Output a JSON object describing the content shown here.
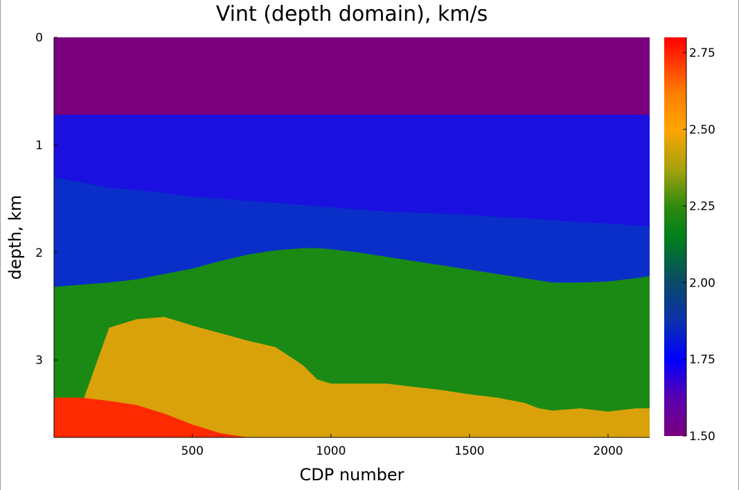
{
  "chart_data": {
    "type": "heatmap",
    "title": "Vint (depth domain), km/s",
    "xlabel": "CDP number",
    "ylabel": "depth, km",
    "xlim": [
      1,
      2150
    ],
    "ylim": [
      0,
      3.72
    ],
    "y_inverted": true,
    "x_ticks": [
      500,
      1000,
      1500,
      2000
    ],
    "x_tick_labels": [
      "500",
      "1000",
      "1500",
      "2000"
    ],
    "y_ticks": [
      0,
      1,
      2,
      3
    ],
    "y_tick_labels": [
      "0",
      "1",
      "2",
      "3"
    ],
    "colorbar": {
      "range": [
        1.5,
        2.8
      ],
      "ticks": [
        1.5,
        1.75,
        2.0,
        2.25,
        2.5,
        2.75
      ],
      "tick_labels": [
        "1.50",
        "1.75",
        "2.00",
        "2.25",
        "2.50",
        "2.75"
      ],
      "stops": [
        {
          "value": 1.5,
          "color": "#7a007e"
        },
        {
          "value": 1.625,
          "color": "#5a00b0"
        },
        {
          "value": 1.75,
          "color": "#0000ff"
        },
        {
          "value": 1.87,
          "color": "#0b2fb0"
        },
        {
          "value": 2.0,
          "color": "#0a4a6a"
        },
        {
          "value": 2.15,
          "color": "#00801a"
        },
        {
          "value": 2.25,
          "color": "#2f8a0e"
        },
        {
          "value": 2.37,
          "color": "#a5a20e"
        },
        {
          "value": 2.5,
          "color": "#ffa500"
        },
        {
          "value": 2.62,
          "color": "#ff7d00"
        },
        {
          "value": 2.8,
          "color": "#ff0000"
        }
      ]
    },
    "layer_boundaries": {
      "description_cdp": [
        1,
        100,
        200,
        300,
        400,
        500,
        600,
        700,
        800,
        900,
        950,
        1000,
        1100,
        1200,
        1300,
        1400,
        1500,
        1600,
        1700,
        1750,
        1800,
        1900,
        2000,
        2100,
        2150
      ],
      "purple_to_blue_depth": [
        0.72,
        0.72,
        0.72,
        0.72,
        0.72,
        0.72,
        0.72,
        0.72,
        0.72,
        0.72,
        0.72,
        0.72,
        0.72,
        0.72,
        0.72,
        0.72,
        0.72,
        0.72,
        0.72,
        0.72,
        0.72,
        0.72,
        0.72,
        0.72,
        0.72
      ],
      "blue_to_deepblue_depth": [
        1.3,
        1.35,
        1.4,
        1.42,
        1.45,
        1.48,
        1.5,
        1.52,
        1.54,
        1.56,
        1.57,
        1.58,
        1.6,
        1.62,
        1.63,
        1.64,
        1.65,
        1.67,
        1.68,
        1.69,
        1.7,
        1.72,
        1.73,
        1.75,
        1.76
      ],
      "deepblue_to_green_depth": [
        2.32,
        2.3,
        2.28,
        2.25,
        2.2,
        2.15,
        2.08,
        2.02,
        1.98,
        1.96,
        1.96,
        1.97,
        2.0,
        2.04,
        2.08,
        2.12,
        2.16,
        2.2,
        2.24,
        2.26,
        2.28,
        2.28,
        2.27,
        2.24,
        2.22
      ],
      "green_to_yellow_depth": [
        3.42,
        3.42,
        2.7,
        2.62,
        2.6,
        2.68,
        2.75,
        2.82,
        2.88,
        3.05,
        3.18,
        3.22,
        3.22,
        3.22,
        3.25,
        3.28,
        3.32,
        3.35,
        3.4,
        3.45,
        3.47,
        3.45,
        3.48,
        3.45,
        3.45
      ],
      "yellow_to_red_depth": [
        3.35,
        3.35,
        3.38,
        3.42,
        3.5,
        3.6,
        3.68,
        3.72,
        3.72,
        3.72,
        3.72,
        3.72,
        3.72,
        3.72,
        3.72,
        3.72,
        3.72,
        3.72,
        3.72,
        3.72,
        3.72,
        3.72,
        3.72,
        3.72,
        3.72
      ]
    },
    "grid": false,
    "legend": "colorbar-right"
  }
}
